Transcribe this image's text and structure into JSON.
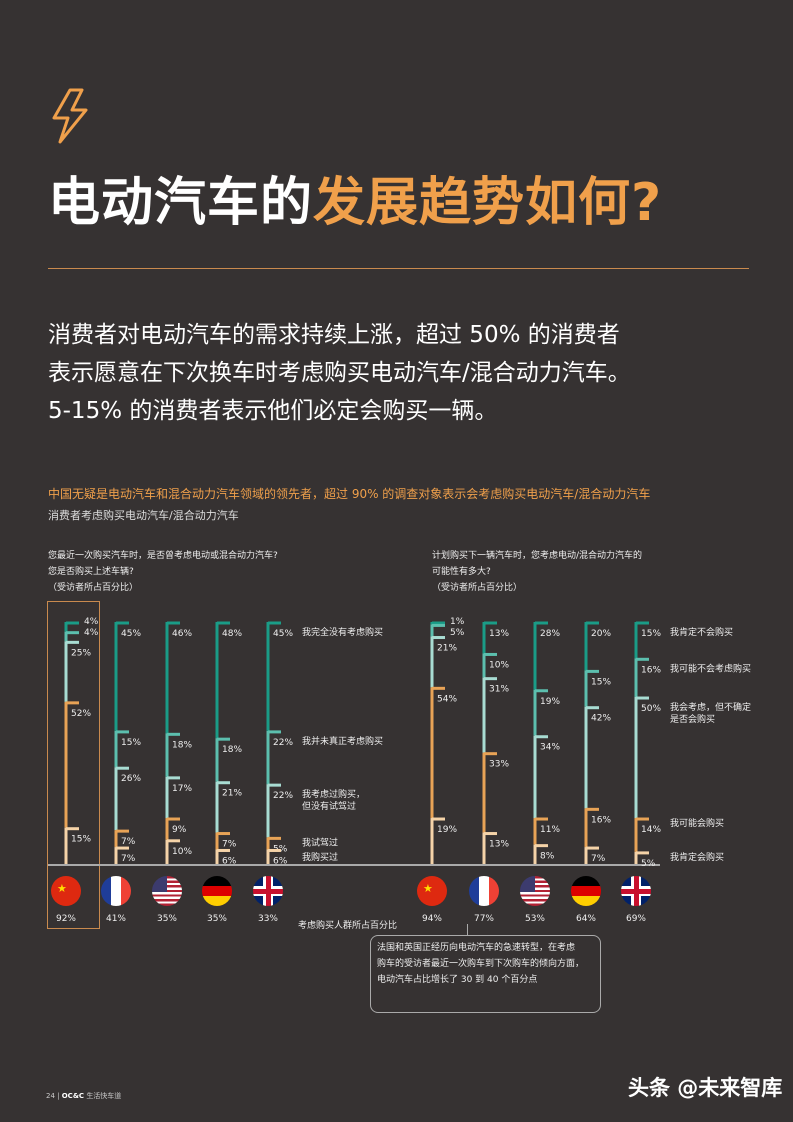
{
  "title": {
    "part1": "电动汽车的",
    "part2": "发展趋势如何?"
  },
  "intro": [
    "消费者对电动汽车的需求持续上涨，超过 50% 的消费者",
    "表示愿意在下次换车时考虑购买电动汽车/混合动力汽车。",
    "5-15% 的消费者表示他们必定会购买一辆。"
  ],
  "headline": "中国无疑是电动汽车和混合动力汽车领域的领先者，超过 90% 的调查对象表示会考虑购买电动汽车/混合动力汽车",
  "subtitle": "消费者考虑购买电动汽车/混合动力汽车",
  "colors": {
    "bg": "#363232",
    "accent": "#f0a04b",
    "seg": [
      "#1a9c87",
      "#5cbfae",
      "#a8dcd2",
      "#e8a356",
      "#f5d3a8"
    ]
  },
  "chart_data": [
    {
      "type": "stacked-bar",
      "question": [
        "您最近一次购买汽车时，是否曾考虑电动或混合动力汽车?",
        "您是否购买上述车辆?",
        "（受访者所占百分比）"
      ],
      "categories": [
        "中国",
        "法国",
        "美国",
        "德国",
        "英国"
      ],
      "series_labels": [
        "我完全没有考虑购买",
        "我并未真正考虑购买",
        "我考虑过购买，但没有试驾过",
        "我试驾过",
        "我购买过"
      ],
      "values": [
        [
          4,
          4,
          25,
          52,
          15
        ],
        [
          45,
          15,
          26,
          7,
          7
        ],
        [
          46,
          18,
          17,
          9,
          10
        ],
        [
          48,
          18,
          21,
          7,
          6
        ],
        [
          45,
          22,
          22,
          5,
          6
        ]
      ],
      "consider_pct": [
        "92%",
        "41%",
        "35%",
        "35%",
        "33%"
      ]
    },
    {
      "type": "stacked-bar",
      "question": [
        "计划购买下一辆汽车时，您考虑电动/混合动力汽车的",
        "可能性有多大?",
        "（受访者所占百分比）"
      ],
      "categories": [
        "中国",
        "法国",
        "美国",
        "德国",
        "英国"
      ],
      "series_labels": [
        "我肯定不会购买",
        "我可能不会考虑购买",
        "我会考虑，但不确定是否会购买",
        "我可能会购买",
        "我肯定会购买"
      ],
      "values": [
        [
          1,
          5,
          21,
          54,
          19
        ],
        [
          13,
          10,
          31,
          33,
          13
        ],
        [
          28,
          19,
          34,
          11,
          8
        ],
        [
          20,
          15,
          42,
          16,
          7
        ],
        [
          15,
          16,
          50,
          14,
          5
        ]
      ],
      "consider_pct": [
        "94%",
        "77%",
        "53%",
        "64%",
        "69%"
      ]
    }
  ],
  "axis_label": "考虑购买人群所占百分比",
  "note": [
    "法国和英国正经历向电动汽车的急速转型，在考虑",
    "购车的受访者最近一次购车到下次购车的倾向方面，",
    "电动汽车占比增长了 30 到 40 个百分点"
  ],
  "footer": {
    "page": "24",
    "brand": "OC&C",
    "name": "生活快车道"
  },
  "watermark": "头条 @未来智库"
}
